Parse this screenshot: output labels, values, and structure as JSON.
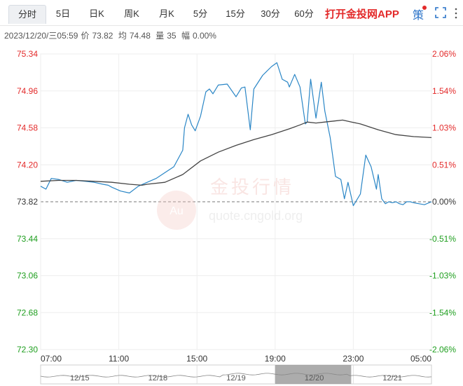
{
  "tabs": [
    {
      "label": "分时",
      "active": true
    },
    {
      "label": "5日"
    },
    {
      "label": "日K"
    },
    {
      "label": "周K"
    },
    {
      "label": "月K"
    },
    {
      "label": "5分"
    },
    {
      "label": "15分"
    },
    {
      "label": "30分"
    },
    {
      "label": "60分"
    }
  ],
  "app_link": "打开金投网APP",
  "strategy_label": "策",
  "info": {
    "datetime": "2023/12/20/三05:59",
    "price_label": "价",
    "price": "73.82",
    "avg_label": "均",
    "avg": "74.48",
    "volume_label": "量",
    "volume": "35",
    "change_label": "幅",
    "change": "0.00%"
  },
  "watermark": {
    "brand": "金投行情",
    "url": "quote.cngold.org",
    "logo_text": "Au"
  },
  "navigator": {
    "dates": [
      "12/15",
      "12/18",
      "12/19",
      "12/20",
      "12/21"
    ]
  },
  "colors": {
    "price_line": "#2a86c6",
    "avg_line": "#444444",
    "up": "#e32a2a",
    "down": "#1e9e1e",
    "axis_left": "#c0392b"
  },
  "chart_data": {
    "type": "line",
    "y_left_ticks": [
      "75.34",
      "74.96",
      "74.58",
      "74.20",
      "73.82",
      "73.44",
      "73.06",
      "72.68",
      "72.30"
    ],
    "y_right_ticks": [
      "2.06%",
      "1.54%",
      "1.03%",
      "0.51%",
      "0.00%",
      "-0.51%",
      "-1.03%",
      "-1.54%",
      "-2.06%"
    ],
    "x_ticks": [
      "07:00",
      "11:00",
      "15:00",
      "19:00",
      "23:00",
      "05:00"
    ],
    "ylim": [
      72.3,
      75.34
    ],
    "prev_close": 73.82,
    "x_range": [
      0,
      22
    ],
    "series": [
      {
        "key": "price",
        "x": [
          0,
          0.3,
          0.6,
          1,
          1.5,
          2,
          2.5,
          3,
          3.5,
          3.8,
          4,
          4.5,
          5,
          5.5,
          6,
          6.5,
          7,
          7.5,
          8,
          8.1,
          8.3,
          8.5,
          8.7,
          9,
          9.3,
          9.5,
          9.7,
          10,
          10.5,
          11,
          11.3,
          11.5,
          11.8,
          12,
          12.5,
          13,
          13.3,
          13.6,
          13.9,
          14,
          14.3,
          14.6,
          14.9,
          15,
          15.2,
          15.5,
          15.8,
          16,
          16.3,
          16.6,
          16.9,
          17.1,
          17.3,
          17.6,
          18,
          18.3,
          18.6,
          18.9,
          19,
          19.2,
          19.4,
          19.6,
          19.8,
          20,
          20.2,
          20.4,
          20.6,
          20.8,
          21,
          21.3,
          21.6,
          22
        ],
        "values": [
          73.98,
          73.95,
          74.06,
          74.05,
          74.02,
          74.04,
          74.03,
          74.02,
          74.0,
          73.99,
          73.97,
          73.93,
          73.91,
          73.98,
          74.02,
          74.06,
          74.12,
          74.18,
          74.35,
          74.58,
          74.72,
          74.61,
          74.55,
          74.7,
          74.95,
          74.98,
          74.93,
          75.02,
          75.03,
          74.9,
          74.99,
          75.0,
          74.56,
          74.98,
          75.12,
          75.21,
          75.25,
          75.08,
          75.05,
          75.0,
          75.13,
          75.0,
          74.62,
          74.64,
          75.08,
          74.68,
          75.05,
          74.75,
          74.48,
          74.08,
          74.05,
          73.85,
          74.02,
          73.78,
          73.9,
          74.3,
          74.18,
          73.95,
          74.1,
          73.85,
          73.8,
          73.82,
          73.81,
          73.82,
          73.8,
          73.79,
          73.82,
          73.82,
          73.81,
          73.8,
          73.79,
          73.82
        ]
      },
      {
        "key": "avg",
        "x": [
          0,
          1,
          2,
          3,
          4,
          5,
          5.7,
          6,
          7,
          8,
          9,
          10,
          11,
          12,
          13,
          14,
          14.6,
          15,
          15.5,
          16,
          16.5,
          17,
          17.5,
          18,
          19,
          20,
          21,
          22
        ],
        "values": [
          74.03,
          74.04,
          74.04,
          74.03,
          74.02,
          74.0,
          73.99,
          74.0,
          74.02,
          74.1,
          74.24,
          74.33,
          74.4,
          74.46,
          74.51,
          74.57,
          74.61,
          74.64,
          74.63,
          74.64,
          74.65,
          74.66,
          74.64,
          74.62,
          74.56,
          74.51,
          74.49,
          74.48
        ]
      }
    ]
  }
}
